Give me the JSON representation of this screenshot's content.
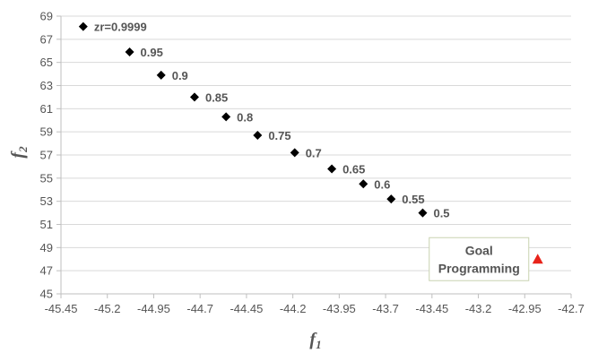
{
  "chart_data": {
    "type": "scatter",
    "title": "",
    "xlabel": "f1",
    "ylabel": "f2",
    "xlim": [
      -45.45,
      -42.7
    ],
    "ylim": [
      45,
      69
    ],
    "xticks": [
      "-45.45",
      "-45.2",
      "-44.95",
      "-44.7",
      "-44.45",
      "-44.2",
      "-43.95",
      "-43.7",
      "-43.45",
      "-43.2",
      "-42.95",
      "-42.7"
    ],
    "yticks": [
      "45",
      "47",
      "49",
      "51",
      "53",
      "55",
      "57",
      "59",
      "61",
      "63",
      "65",
      "67",
      "69"
    ],
    "grid": "horizontal",
    "series": [
      {
        "marker": "diamond",
        "color": "#000000",
        "points": [
          {
            "x": -45.33,
            "y": 68.1,
            "label": "zr=0.9999"
          },
          {
            "x": -45.08,
            "y": 65.9,
            "label": "0.95"
          },
          {
            "x": -44.91,
            "y": 63.9,
            "label": "0.9"
          },
          {
            "x": -44.73,
            "y": 62.0,
            "label": "0.85"
          },
          {
            "x": -44.56,
            "y": 60.3,
            "label": "0.8"
          },
          {
            "x": -44.39,
            "y": 58.7,
            "label": "0.75"
          },
          {
            "x": -44.19,
            "y": 57.2,
            "label": "0.7"
          },
          {
            "x": -43.99,
            "y": 55.8,
            "label": "0.65"
          },
          {
            "x": -43.82,
            "y": 54.5,
            "label": "0.6"
          },
          {
            "x": -43.67,
            "y": 53.2,
            "label": "0.55"
          },
          {
            "x": -43.5,
            "y": 52.0,
            "label": "0.5"
          }
        ]
      },
      {
        "marker": "triangle",
        "color": "#e8231a",
        "points": [
          {
            "x": -42.88,
            "y": 48.0
          }
        ]
      }
    ],
    "annotations": [
      {
        "lines": [
          "Goal",
          "Programming"
        ],
        "target": "triangle"
      }
    ],
    "colors": {
      "gridline": "#d9d9d9",
      "axis": "#bfbfbf",
      "text": "#555555",
      "callout_border": "#c9d2b0"
    }
  }
}
